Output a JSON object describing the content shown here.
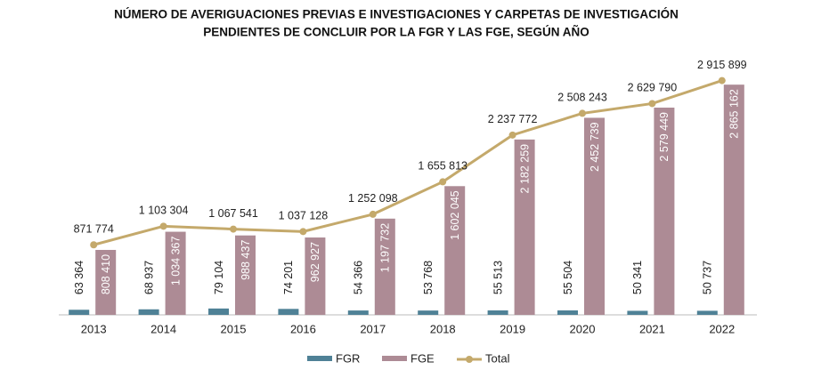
{
  "chart_data": {
    "type": "bar-line",
    "title": [
      "NÚMERO DE AVERIGUACIONES PREVIAS E INVESTIGACIONES Y CARPETAS DE INVESTIGACIÓN",
      "PENDIENTES DE CONCLUIR POR LA FGR Y LAS FGE, SEGÚN AÑO"
    ],
    "categories": [
      "2013",
      "2014",
      "2015",
      "2016",
      "2017",
      "2018",
      "2019",
      "2020",
      "2021",
      "2022"
    ],
    "ylim": [
      0,
      3000000
    ],
    "series": [
      {
        "name": "FGR",
        "type": "bar",
        "color": "#4f8196",
        "values": [
          63364,
          68937,
          79104,
          74201,
          54366,
          53768,
          55513,
          55504,
          50341,
          50737
        ],
        "value_labels": [
          "63 364",
          "68 937",
          "79 104",
          "74 201",
          "54 366",
          "53 768",
          "55 513",
          "55 504",
          "50 341",
          "50 737"
        ]
      },
      {
        "name": "FGE",
        "type": "bar",
        "color": "#ad8b95",
        "values": [
          808410,
          1034367,
          988437,
          962927,
          1197732,
          1602045,
          2182259,
          2452739,
          2579449,
          2865162
        ],
        "value_labels": [
          "808 410",
          "1 034 367",
          "988 437",
          "962 927",
          "1 197 732",
          "1 602 045",
          "2 182 259",
          "2 452 739",
          "2 579 449",
          "2 865 162"
        ]
      },
      {
        "name": "Total",
        "type": "line",
        "color": "#c4a96b",
        "values": [
          871774,
          1103304,
          1067541,
          1037128,
          1252098,
          1655813,
          2237772,
          2508243,
          2629790,
          2915899
        ],
        "value_labels": [
          "871 774",
          "1 103 304",
          "1 067 541",
          "1 037 128",
          "1 252 098",
          "1 655 813",
          "2 237 772",
          "2 508 243",
          "2 629 790",
          "2 915 899"
        ]
      }
    ],
    "legend": "bottom"
  }
}
